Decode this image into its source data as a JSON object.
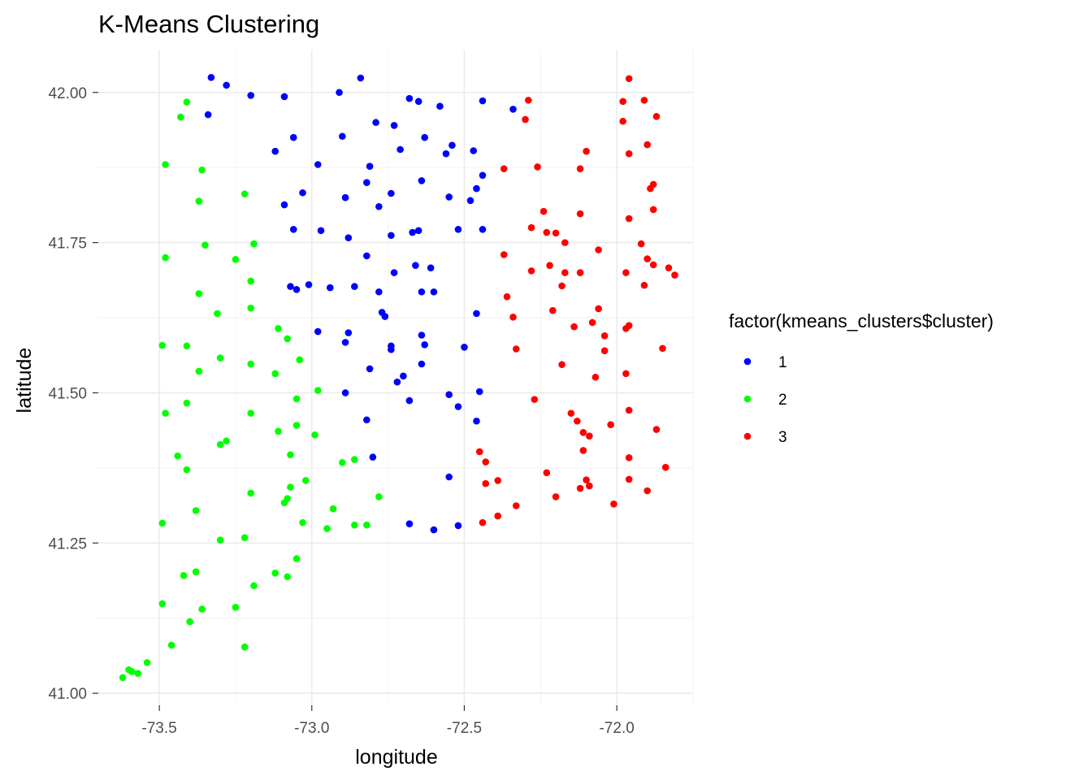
{
  "chart_data": {
    "type": "scatter",
    "title": "K-Means Clustering",
    "xlabel": "longitude",
    "ylabel": "latitude",
    "xlim": [
      -73.7,
      -71.75
    ],
    "ylim": [
      40.98,
      42.07
    ],
    "x_ticks": [
      -73.5,
      -73.0,
      -72.5,
      -72.0
    ],
    "x_tick_labels": [
      "-73.5",
      "-73.0",
      "-72.5",
      "-72.0"
    ],
    "y_ticks": [
      41.0,
      41.25,
      41.5,
      41.75,
      42.0
    ],
    "y_tick_labels": [
      "41.00",
      "41.25",
      "41.50",
      "41.75",
      "42.00"
    ],
    "grid": true,
    "legend": {
      "title": "factor(kmeans_clusters$cluster)",
      "position": "right"
    },
    "series": [
      {
        "name": "1",
        "color": "#0000ff",
        "points": [
          [
            -73.33,
            42.025
          ],
          [
            -73.28,
            42.012
          ],
          [
            -72.84,
            42.024
          ],
          [
            -73.2,
            41.995
          ],
          [
            -73.09,
            41.993
          ],
          [
            -72.91,
            42.0
          ],
          [
            -72.68,
            41.99
          ],
          [
            -72.65,
            41.985
          ],
          [
            -72.58,
            41.977
          ],
          [
            -72.44,
            41.986
          ],
          [
            -72.34,
            41.972
          ],
          [
            -73.34,
            41.963
          ],
          [
            -72.79,
            41.95
          ],
          [
            -72.73,
            41.945
          ],
          [
            -73.06,
            41.925
          ],
          [
            -72.9,
            41.927
          ],
          [
            -72.63,
            41.925
          ],
          [
            -72.54,
            41.912
          ],
          [
            -72.56,
            41.898
          ],
          [
            -72.47,
            41.903
          ],
          [
            -73.12,
            41.902
          ],
          [
            -72.71,
            41.905
          ],
          [
            -72.98,
            41.88
          ],
          [
            -72.81,
            41.877
          ],
          [
            -72.44,
            41.862
          ],
          [
            -72.64,
            41.853
          ],
          [
            -72.46,
            41.84
          ],
          [
            -72.82,
            41.85
          ],
          [
            -73.03,
            41.833
          ],
          [
            -72.89,
            41.825
          ],
          [
            -72.74,
            41.832
          ],
          [
            -72.55,
            41.826
          ],
          [
            -72.48,
            41.82
          ],
          [
            -73.09,
            41.813
          ],
          [
            -72.78,
            41.81
          ],
          [
            -73.06,
            41.772
          ],
          [
            -72.97,
            41.77
          ],
          [
            -72.65,
            41.77
          ],
          [
            -72.67,
            41.767
          ],
          [
            -72.52,
            41.772
          ],
          [
            -72.44,
            41.772
          ],
          [
            -72.88,
            41.758
          ],
          [
            -72.74,
            41.762
          ],
          [
            -72.82,
            41.728
          ],
          [
            -72.66,
            41.712
          ],
          [
            -72.61,
            41.708
          ],
          [
            -72.73,
            41.7
          ],
          [
            -73.07,
            41.677
          ],
          [
            -73.01,
            41.68
          ],
          [
            -73.05,
            41.672
          ],
          [
            -72.94,
            41.675
          ],
          [
            -72.86,
            41.677
          ],
          [
            -72.78,
            41.668
          ],
          [
            -72.64,
            41.668
          ],
          [
            -72.6,
            41.668
          ],
          [
            -72.77,
            41.634
          ],
          [
            -72.76,
            41.627
          ],
          [
            -72.46,
            41.632
          ],
          [
            -72.98,
            41.602
          ],
          [
            -72.88,
            41.6
          ],
          [
            -72.89,
            41.584
          ],
          [
            -72.64,
            41.596
          ],
          [
            -72.63,
            41.58
          ],
          [
            -72.74,
            41.578
          ],
          [
            -72.74,
            41.572
          ],
          [
            -72.5,
            41.576
          ],
          [
            -72.64,
            41.548
          ],
          [
            -72.81,
            41.54
          ],
          [
            -72.7,
            41.528
          ],
          [
            -72.72,
            41.518
          ],
          [
            -72.89,
            41.5
          ],
          [
            -72.68,
            41.487
          ],
          [
            -72.55,
            41.497
          ],
          [
            -72.45,
            41.502
          ],
          [
            -72.52,
            41.477
          ],
          [
            -72.46,
            41.453
          ],
          [
            -72.82,
            41.455
          ],
          [
            -72.8,
            41.393
          ],
          [
            -72.55,
            41.36
          ],
          [
            -72.68,
            41.282
          ],
          [
            -72.6,
            41.272
          ],
          [
            -72.52,
            41.279
          ]
        ]
      },
      {
        "name": "2",
        "color": "#00ff00",
        "points": [
          [
            -73.41,
            41.984
          ],
          [
            -73.43,
            41.959
          ],
          [
            -73.48,
            41.88
          ],
          [
            -73.36,
            41.871
          ],
          [
            -73.22,
            41.831
          ],
          [
            -73.37,
            41.819
          ],
          [
            -73.35,
            41.746
          ],
          [
            -73.19,
            41.748
          ],
          [
            -73.48,
            41.725
          ],
          [
            -73.25,
            41.722
          ],
          [
            -73.2,
            41.686
          ],
          [
            -73.37,
            41.665
          ],
          [
            -73.2,
            41.641
          ],
          [
            -73.31,
            41.632
          ],
          [
            -73.11,
            41.607
          ],
          [
            -73.08,
            41.59
          ],
          [
            -73.49,
            41.579
          ],
          [
            -73.41,
            41.578
          ],
          [
            -73.3,
            41.558
          ],
          [
            -73.04,
            41.555
          ],
          [
            -73.2,
            41.548
          ],
          [
            -73.37,
            41.536
          ],
          [
            -73.12,
            41.532
          ],
          [
            -72.98,
            41.504
          ],
          [
            -73.05,
            41.49
          ],
          [
            -73.41,
            41.483
          ],
          [
            -73.48,
            41.466
          ],
          [
            -73.2,
            41.466
          ],
          [
            -73.05,
            41.446
          ],
          [
            -73.11,
            41.436
          ],
          [
            -72.99,
            41.43
          ],
          [
            -73.3,
            41.414
          ],
          [
            -73.28,
            41.42
          ],
          [
            -73.07,
            41.397
          ],
          [
            -73.44,
            41.395
          ],
          [
            -72.86,
            41.389
          ],
          [
            -72.9,
            41.384
          ],
          [
            -73.41,
            41.372
          ],
          [
            -73.02,
            41.354
          ],
          [
            -73.07,
            41.343
          ],
          [
            -73.2,
            41.333
          ],
          [
            -73.08,
            41.324
          ],
          [
            -73.09,
            41.317
          ],
          [
            -72.78,
            41.327
          ],
          [
            -73.38,
            41.304
          ],
          [
            -72.93,
            41.307
          ],
          [
            -73.03,
            41.284
          ],
          [
            -73.49,
            41.283
          ],
          [
            -72.86,
            41.28
          ],
          [
            -72.82,
            41.28
          ],
          [
            -72.95,
            41.274
          ],
          [
            -73.3,
            41.255
          ],
          [
            -73.22,
            41.259
          ],
          [
            -73.05,
            41.224
          ],
          [
            -73.12,
            41.2
          ],
          [
            -73.08,
            41.194
          ],
          [
            -73.38,
            41.202
          ],
          [
            -73.42,
            41.196
          ],
          [
            -73.19,
            41.179
          ],
          [
            -73.49,
            41.149
          ],
          [
            -73.25,
            41.143
          ],
          [
            -73.36,
            41.14
          ],
          [
            -73.4,
            41.119
          ],
          [
            -73.46,
            41.08
          ],
          [
            -73.22,
            41.077
          ],
          [
            -73.54,
            41.051
          ],
          [
            -73.57,
            41.033
          ],
          [
            -73.59,
            41.036
          ],
          [
            -73.6,
            41.039
          ],
          [
            -73.62,
            41.026
          ]
        ]
      },
      {
        "name": "3",
        "color": "#ff0000",
        "points": [
          [
            -71.96,
            42.023
          ],
          [
            -72.29,
            41.987
          ],
          [
            -71.98,
            41.985
          ],
          [
            -71.91,
            41.987
          ],
          [
            -72.3,
            41.955
          ],
          [
            -71.98,
            41.952
          ],
          [
            -71.87,
            41.96
          ],
          [
            -71.9,
            41.913
          ],
          [
            -72.1,
            41.902
          ],
          [
            -71.96,
            41.898
          ],
          [
            -72.26,
            41.876
          ],
          [
            -72.37,
            41.873
          ],
          [
            -72.12,
            41.873
          ],
          [
            -71.88,
            41.847
          ],
          [
            -71.89,
            41.84
          ],
          [
            -71.88,
            41.805
          ],
          [
            -72.24,
            41.802
          ],
          [
            -72.12,
            41.798
          ],
          [
            -71.96,
            41.79
          ],
          [
            -72.28,
            41.775
          ],
          [
            -72.23,
            41.767
          ],
          [
            -72.2,
            41.766
          ],
          [
            -72.17,
            41.75
          ],
          [
            -71.92,
            41.748
          ],
          [
            -72.06,
            41.738
          ],
          [
            -72.37,
            41.73
          ],
          [
            -71.9,
            41.723
          ],
          [
            -71.88,
            41.713
          ],
          [
            -71.83,
            41.708
          ],
          [
            -72.22,
            41.712
          ],
          [
            -72.17,
            41.7
          ],
          [
            -72.12,
            41.7
          ],
          [
            -72.28,
            41.703
          ],
          [
            -71.97,
            41.7
          ],
          [
            -71.81,
            41.696
          ],
          [
            -72.18,
            41.678
          ],
          [
            -71.91,
            41.679
          ],
          [
            -72.36,
            41.66
          ],
          [
            -72.06,
            41.64
          ],
          [
            -72.21,
            41.637
          ],
          [
            -72.34,
            41.626
          ],
          [
            -72.08,
            41.617
          ],
          [
            -71.96,
            41.612
          ],
          [
            -71.97,
            41.607
          ],
          [
            -72.14,
            41.61
          ],
          [
            -72.04,
            41.595
          ],
          [
            -72.33,
            41.573
          ],
          [
            -72.04,
            41.57
          ],
          [
            -71.85,
            41.574
          ],
          [
            -72.18,
            41.547
          ],
          [
            -71.97,
            41.532
          ],
          [
            -72.07,
            41.526
          ],
          [
            -72.27,
            41.489
          ],
          [
            -71.96,
            41.471
          ],
          [
            -72.15,
            41.466
          ],
          [
            -72.13,
            41.453
          ],
          [
            -72.02,
            41.447
          ],
          [
            -71.87,
            41.439
          ],
          [
            -72.11,
            41.434
          ],
          [
            -72.09,
            41.428
          ],
          [
            -72.11,
            41.404
          ],
          [
            -72.45,
            41.402
          ],
          [
            -72.43,
            41.385
          ],
          [
            -71.96,
            41.392
          ],
          [
            -71.84,
            41.376
          ],
          [
            -72.23,
            41.367
          ],
          [
            -72.1,
            41.355
          ],
          [
            -71.96,
            41.356
          ],
          [
            -72.39,
            41.354
          ],
          [
            -72.43,
            41.349
          ],
          [
            -72.09,
            41.345
          ],
          [
            -72.12,
            41.341
          ],
          [
            -71.9,
            41.337
          ],
          [
            -72.2,
            41.327
          ],
          [
            -72.01,
            41.315
          ],
          [
            -72.33,
            41.312
          ],
          [
            -72.39,
            41.295
          ],
          [
            -72.44,
            41.284
          ]
        ]
      }
    ]
  }
}
